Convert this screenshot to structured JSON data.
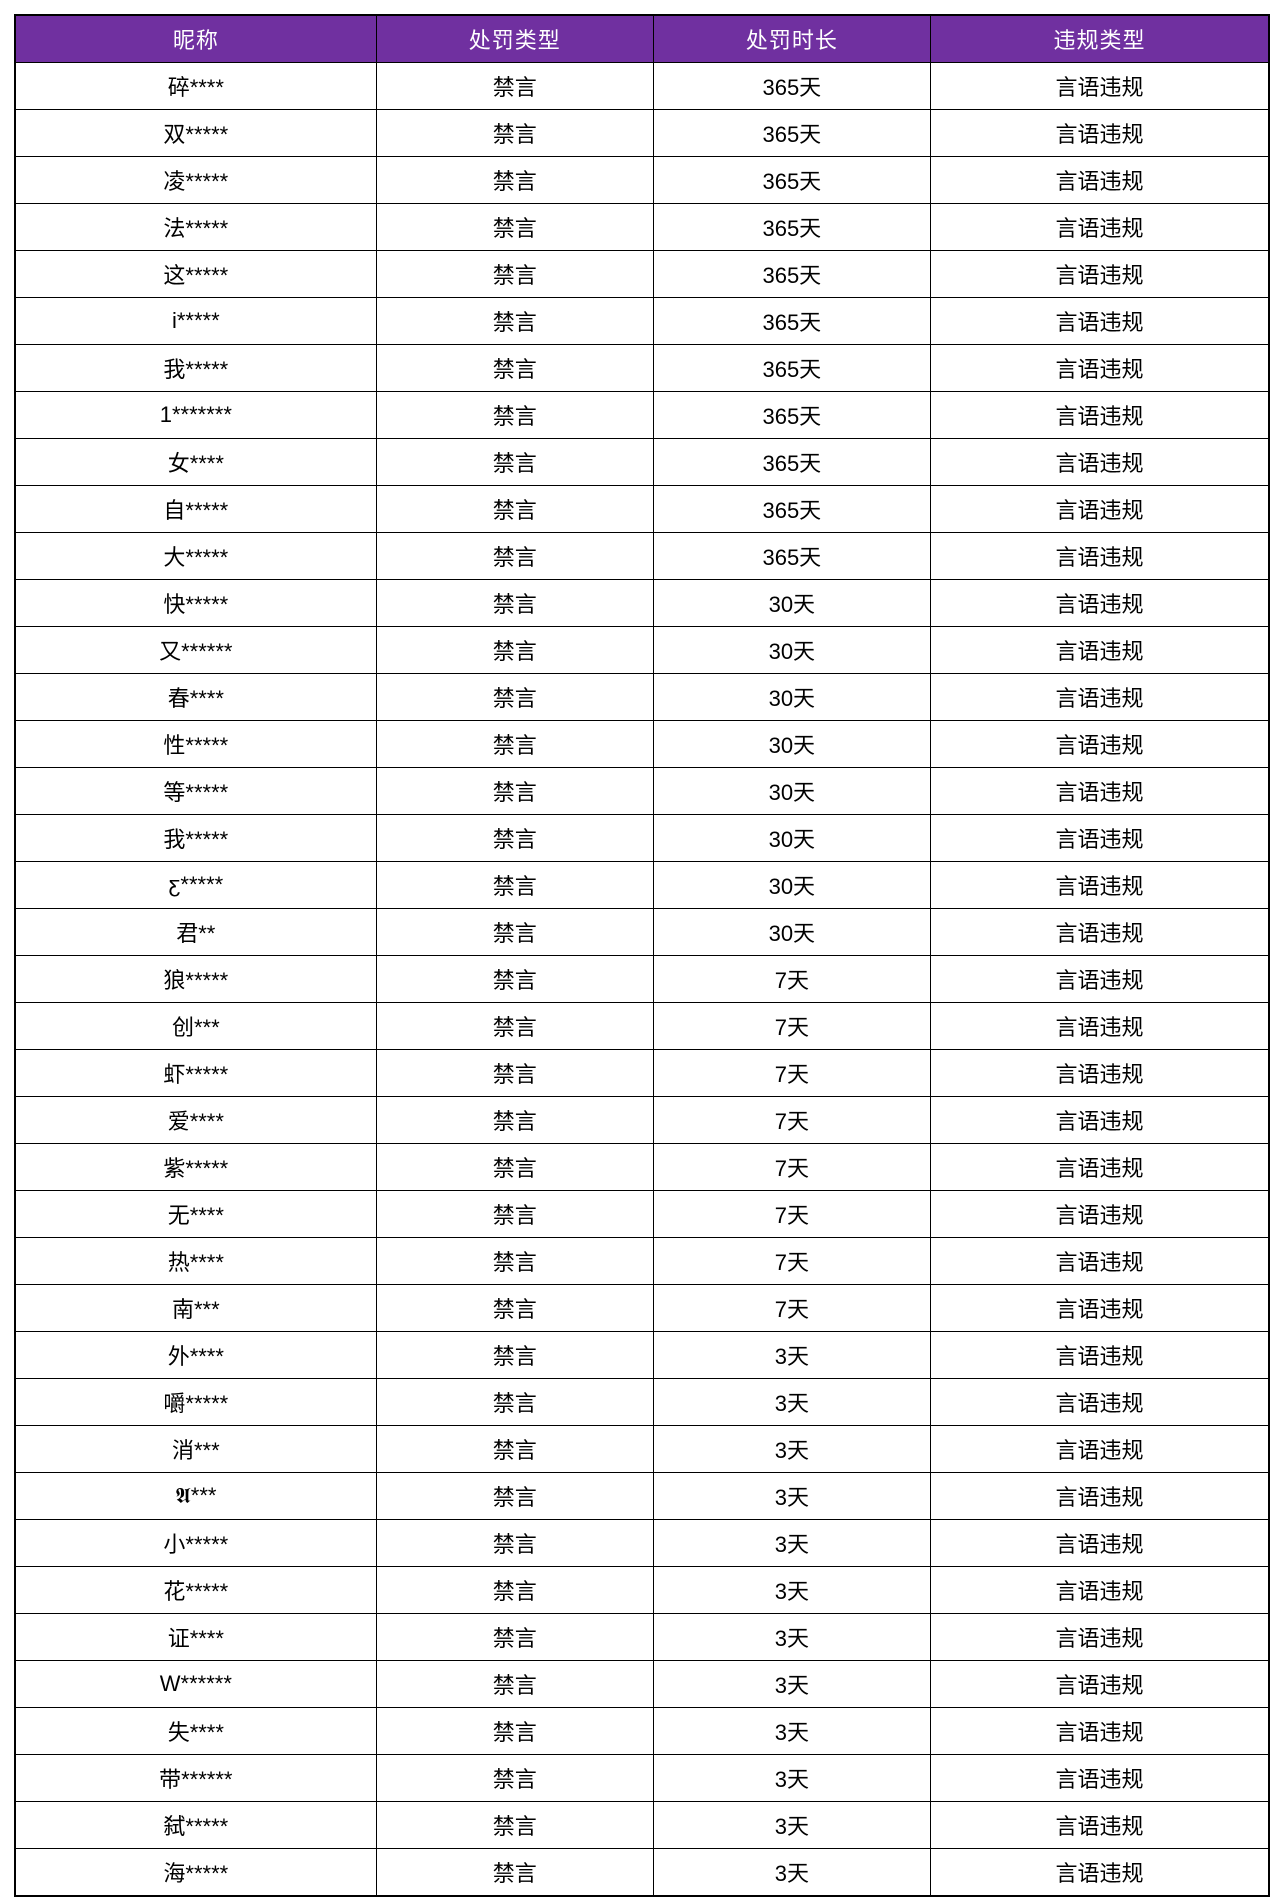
{
  "colors": {
    "header_bg": "#7030A0",
    "header_text": "#FFFFFF",
    "border": "#000000"
  },
  "header": {
    "columns": [
      "昵称",
      "处罚类型",
      "处罚时长",
      "违规类型"
    ]
  },
  "table": {
    "rows": [
      {
        "nickname": "碎****",
        "punish_type": "禁言",
        "duration": "365天",
        "violation": "言语违规"
      },
      {
        "nickname": "双*****",
        "punish_type": "禁言",
        "duration": "365天",
        "violation": "言语违规"
      },
      {
        "nickname": "凌*****",
        "punish_type": "禁言",
        "duration": "365天",
        "violation": "言语违规"
      },
      {
        "nickname": "法*****",
        "punish_type": "禁言",
        "duration": "365天",
        "violation": "言语违规"
      },
      {
        "nickname": "这*****",
        "punish_type": "禁言",
        "duration": "365天",
        "violation": "言语违规"
      },
      {
        "nickname": "i*****",
        "punish_type": "禁言",
        "duration": "365天",
        "violation": "言语违规"
      },
      {
        "nickname": "我*****",
        "punish_type": "禁言",
        "duration": "365天",
        "violation": "言语违规"
      },
      {
        "nickname": "1*******",
        "punish_type": "禁言",
        "duration": "365天",
        "violation": "言语违规"
      },
      {
        "nickname": "女****",
        "punish_type": "禁言",
        "duration": "365天",
        "violation": "言语违规"
      },
      {
        "nickname": "自*****",
        "punish_type": "禁言",
        "duration": "365天",
        "violation": "言语违规"
      },
      {
        "nickname": "大*****",
        "punish_type": "禁言",
        "duration": "365天",
        "violation": "言语违规"
      },
      {
        "nickname": "快*****",
        "punish_type": "禁言",
        "duration": "30天",
        "violation": "言语违规"
      },
      {
        "nickname": "又******",
        "punish_type": "禁言",
        "duration": "30天",
        "violation": "言语违规"
      },
      {
        "nickname": "春****",
        "punish_type": "禁言",
        "duration": "30天",
        "violation": "言语违规"
      },
      {
        "nickname": "性*****",
        "punish_type": "禁言",
        "duration": "30天",
        "violation": "言语违规"
      },
      {
        "nickname": "等*****",
        "punish_type": "禁言",
        "duration": "30天",
        "violation": "言语违规"
      },
      {
        "nickname": "我*****",
        "punish_type": "禁言",
        "duration": "30天",
        "violation": "言语违规"
      },
      {
        "nickname": "ƹ*****",
        "punish_type": "禁言",
        "duration": "30天",
        "violation": "言语违规"
      },
      {
        "nickname": "君**",
        "punish_type": "禁言",
        "duration": "30天",
        "violation": "言语违规"
      },
      {
        "nickname": "狼*****",
        "punish_type": "禁言",
        "duration": "7天",
        "violation": "言语违规"
      },
      {
        "nickname": "创***",
        "punish_type": "禁言",
        "duration": "7天",
        "violation": "言语违规"
      },
      {
        "nickname": "虾*****",
        "punish_type": "禁言",
        "duration": "7天",
        "violation": "言语违规"
      },
      {
        "nickname": "爱****",
        "punish_type": "禁言",
        "duration": "7天",
        "violation": "言语违规"
      },
      {
        "nickname": "紫*****",
        "punish_type": "禁言",
        "duration": "7天",
        "violation": "言语违规"
      },
      {
        "nickname": "无****",
        "punish_type": "禁言",
        "duration": "7天",
        "violation": "言语违规"
      },
      {
        "nickname": "热****",
        "punish_type": "禁言",
        "duration": "7天",
        "violation": "言语违规"
      },
      {
        "nickname": "南***",
        "punish_type": "禁言",
        "duration": "7天",
        "violation": "言语违规"
      },
      {
        "nickname": "外****",
        "punish_type": "禁言",
        "duration": "3天",
        "violation": "言语违规"
      },
      {
        "nickname": "嚼*****",
        "punish_type": "禁言",
        "duration": "3天",
        "violation": "言语违规"
      },
      {
        "nickname": "消***",
        "punish_type": "禁言",
        "duration": "3天",
        "violation": "言语违规"
      },
      {
        "nickname": "𝕬***",
        "punish_type": "禁言",
        "duration": "3天",
        "violation": "言语违规"
      },
      {
        "nickname": "小*****",
        "punish_type": "禁言",
        "duration": "3天",
        "violation": "言语违规"
      },
      {
        "nickname": "花*****",
        "punish_type": "禁言",
        "duration": "3天",
        "violation": "言语违规"
      },
      {
        "nickname": "证****",
        "punish_type": "禁言",
        "duration": "3天",
        "violation": "言语违规"
      },
      {
        "nickname": "W******",
        "punish_type": "禁言",
        "duration": "3天",
        "violation": "言语违规"
      },
      {
        "nickname": "失****",
        "punish_type": "禁言",
        "duration": "3天",
        "violation": "言语违规"
      },
      {
        "nickname": "带******",
        "punish_type": "禁言",
        "duration": "3天",
        "violation": "言语违规"
      },
      {
        "nickname": "弑*****",
        "punish_type": "禁言",
        "duration": "3天",
        "violation": "言语违规"
      },
      {
        "nickname": "海*****",
        "punish_type": "禁言",
        "duration": "3天",
        "violation": "言语违规"
      }
    ]
  }
}
